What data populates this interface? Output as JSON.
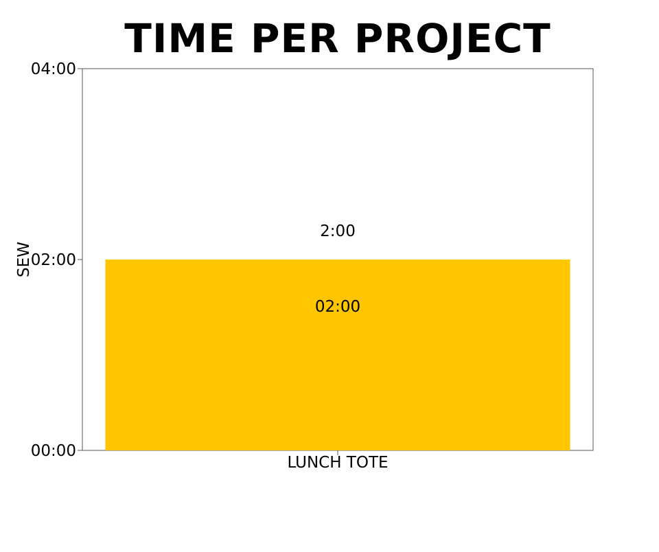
{
  "chart_data": {
    "type": "bar",
    "title": "TIME PER PROJECT",
    "xlabel": "",
    "ylabel": "SEW",
    "categories": [
      "LUNCH TOTE"
    ],
    "series": [
      {
        "values": [
          120
        ],
        "value_labels": [
          "2:00"
        ],
        "inner_labels": [
          "02:00"
        ],
        "color": "#FFC600"
      }
    ],
    "ylim": [
      0,
      240
    ],
    "yticks": [
      {
        "value": 0,
        "label": "00:00"
      },
      {
        "value": 120,
        "label": "02:00"
      },
      {
        "value": 240,
        "label": "04:00"
      }
    ],
    "value_unit": "minutes",
    "grid": false,
    "legend": "none"
  }
}
